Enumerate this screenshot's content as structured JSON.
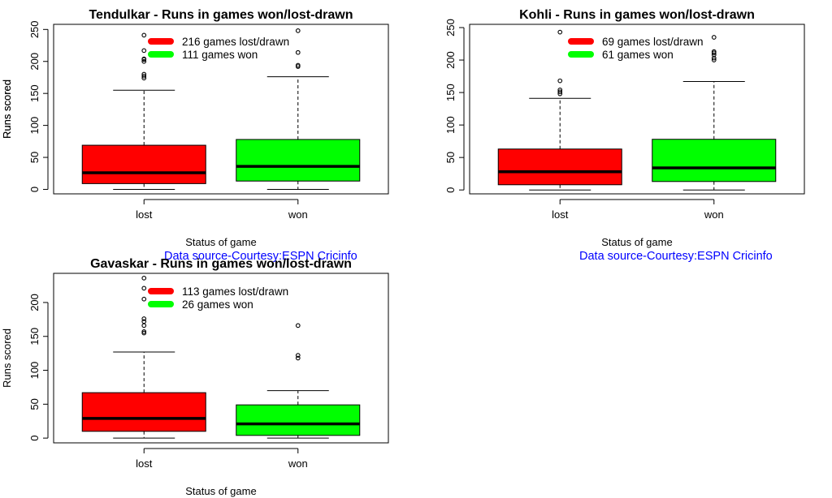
{
  "colors": {
    "lost": "#ff0000",
    "won": "#00ff00",
    "source": "#0000ff",
    "ink": "#000000"
  },
  "chart_data": [
    {
      "type": "boxplot",
      "title": "Tendulkar - Runs in games won/lost-drawn",
      "xlabel": "Status of game",
      "ylabel": "Runs scored",
      "ylim": [
        -7,
        258
      ],
      "yticks": [
        0,
        50,
        100,
        150,
        200,
        250
      ],
      "categories": [
        "lost",
        "won"
      ],
      "boxes": [
        {
          "name": "lost",
          "whisker_low": 0,
          "q1": 9,
          "median": 26,
          "q3": 69,
          "whisker_high": 155,
          "outliers": [
            174,
            177,
            180,
            200,
            203,
            204,
            217,
            241
          ]
        },
        {
          "name": "won",
          "whisker_low": 0,
          "q1": 13,
          "median": 36,
          "q3": 78,
          "whisker_high": 176,
          "outliers": [
            192,
            194,
            214,
            248
          ]
        }
      ],
      "legend": [
        {
          "label": "216 games lost/drawn",
          "color": "lost"
        },
        {
          "label": "111 games won",
          "color": "won"
        }
      ],
      "source": "Data source-Courtesy:ESPN Cricinfo"
    },
    {
      "type": "boxplot",
      "title": "Kohli - Runs in games won/lost-drawn",
      "xlabel": "Status of game",
      "ylabel": "Runs scored",
      "ylim": [
        -6,
        255
      ],
      "yticks": [
        0,
        50,
        100,
        150,
        200,
        250
      ],
      "categories": [
        "lost",
        "won"
      ],
      "boxes": [
        {
          "name": "lost",
          "whisker_low": 0,
          "q1": 8,
          "median": 28,
          "q3": 63,
          "whisker_high": 141,
          "outliers": [
            148,
            151,
            154,
            168,
            243
          ]
        },
        {
          "name": "won",
          "whisker_low": 0,
          "q1": 13,
          "median": 34,
          "q3": 78,
          "whisker_high": 167,
          "outliers": [
            200,
            203,
            208,
            211,
            213,
            235
          ]
        }
      ],
      "legend": [
        {
          "label": "69 games lost/drawn",
          "color": "lost"
        },
        {
          "label": "61 games won",
          "color": "won"
        }
      ],
      "source": "Data source-Courtesy:ESPN Cricinfo"
    },
    {
      "type": "boxplot",
      "title": "Gavaskar - Runs in games won/lost-drawn",
      "xlabel": "Status of game",
      "ylabel": "Runs scored",
      "ylim": [
        -7,
        243
      ],
      "yticks": [
        0,
        50,
        100,
        150,
        200
      ],
      "categories": [
        "lost",
        "won"
      ],
      "boxes": [
        {
          "name": "lost",
          "whisker_low": 0,
          "q1": 10,
          "median": 29,
          "q3": 67,
          "whisker_high": 127,
          "outliers": [
            155,
            157,
            166,
            172,
            176,
            205,
            221,
            236
          ]
        },
        {
          "name": "won",
          "whisker_low": 0,
          "q1": 4,
          "median": 21,
          "q3": 49,
          "whisker_high": 70,
          "outliers": [
            118,
            122,
            166
          ]
        }
      ],
      "legend": [
        {
          "label": "113 games lost/drawn",
          "color": "lost"
        },
        {
          "label": "26 games won",
          "color": "won"
        }
      ],
      "source": ""
    }
  ]
}
